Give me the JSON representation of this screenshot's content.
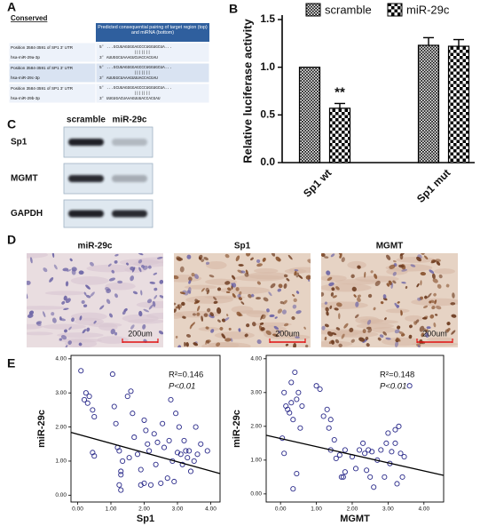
{
  "panel_labels": [
    "A",
    "B",
    "C",
    "D",
    "E"
  ],
  "conservation_table": {
    "title": "Conserved",
    "header": "Predicted consequential pairing of target region (top) and miRNA (bottom)",
    "rows": [
      {
        "site": "Position 3584-3591 of SP1 3' UTR",
        "mirna": "hsa-miR-29a-3p",
        "target_seq": "5'   ...GCUUAGGGGAGCCCUGGUGCUA...",
        "pairing": "|||||||",
        "mirna_seq": "3'      AUUGGCUAAAGUCUACCACGAU"
      },
      {
        "site": "Position 3584-3591 of SP1 3' UTR",
        "mirna": "hsa-miR-29c-3p",
        "target_seq": "5'   ...GCUUAGGGGAGCCCUGGUGCUA...",
        "pairing": "|||||||",
        "mirna_seq": "3'      AUUGGCUAAAGUUUACCACGAU"
      },
      {
        "site": "Position 3584-3591 of SP1 3' UTR",
        "mirna": "hsa-miR-29b-3p",
        "target_seq": "5'   ...GCUUAGGGGAGCCCUGGUGCUA...",
        "pairing": "|||||||",
        "mirna_seq": "3'     UUGUGACUAAAGUUUACCACGAU"
      }
    ]
  },
  "western_blot": {
    "lanes": [
      "scramble",
      "miR-29c"
    ],
    "proteins": [
      "Sp1",
      "MGMT",
      "GAPDH"
    ]
  },
  "ihc": {
    "panels": [
      {
        "title": "miR-29c",
        "scale_bar": "200um"
      },
      {
        "title": "Sp1",
        "scale_bar": "200um"
      },
      {
        "title": "MGMT",
        "scale_bar": "200um"
      }
    ]
  },
  "chart_data": [
    {
      "type": "bar",
      "y_label": "Relative luciferase activity",
      "categories": [
        "Sp1 wt",
        "Sp1 mut"
      ],
      "series": [
        {
          "name": "scramble",
          "color": "#000000",
          "values": [
            1.0,
            1.23
          ],
          "errors": [
            null,
            0.08
          ]
        },
        {
          "name": "miR-29c",
          "color": "#000000",
          "values": [
            0.57,
            1.22
          ],
          "errors": [
            0.05,
            0.07
          ]
        }
      ],
      "ylim": [
        0,
        1.5
      ],
      "yticks": [
        {
          "value": 0,
          "label": "0.0"
        },
        0.5,
        {
          "value": 1,
          "label": "1.0"
        },
        1.5
      ],
      "annotations": [
        "**"
      ]
    },
    {
      "type": "scatter",
      "x_label": "Sp1",
      "y_label": "miR-29c",
      "color": "#2a2a8a",
      "x": [
        0.1,
        0.25,
        0.3,
        0.35,
        0.45,
        0.5,
        0.45,
        0.5,
        0.2,
        1.05,
        1.1,
        1.15,
        1.2,
        1.25,
        1.25,
        1.3,
        1.3,
        1.35,
        1.3,
        1.5,
        1.6,
        1.65,
        1.7,
        1.8,
        1.9,
        1.9,
        2.0,
        2.05,
        2.1,
        2.15,
        2.2,
        2.3,
        2.35,
        2.4,
        2.5,
        2.55,
        2.6,
        2.7,
        2.75,
        2.8,
        2.85,
        2.9,
        2.95,
        3.0,
        3.05,
        3.1,
        3.15,
        3.2,
        3.25,
        3.3,
        3.35,
        3.4,
        3.5,
        3.55,
        3.6,
        3.7,
        3.9,
        2.0,
        1.55
      ],
      "values": [
        3.65,
        3.0,
        2.7,
        2.9,
        2.5,
        2.3,
        1.25,
        1.15,
        2.8,
        3.55,
        2.6,
        2.1,
        1.4,
        1.3,
        0.3,
        0.6,
        0.7,
        1.0,
        0.15,
        2.9,
        3.05,
        2.4,
        1.7,
        1.2,
        0.75,
        0.3,
        2.2,
        1.9,
        1.5,
        1.3,
        0.3,
        1.8,
        0.9,
        1.55,
        0.35,
        2.1,
        1.4,
        0.5,
        1.6,
        2.8,
        1.0,
        0.4,
        2.4,
        1.25,
        2.0,
        1.2,
        0.9,
        1.6,
        1.3,
        1.1,
        1.3,
        0.7,
        1.0,
        2.0,
        1.2,
        1.5,
        1.3,
        0.35,
        1.1
      ],
      "trendline": {
        "intercept": 1.79,
        "slope": -0.27
      },
      "xlim": [
        -0.2,
        4.28
      ],
      "ylim": [
        -0.2,
        4.1
      ],
      "xticks": [
        {
          "value": 0,
          "label": "0.00"
        },
        {
          "value": 1,
          "label": "1.00"
        },
        {
          "value": 2,
          "label": "2.00"
        },
        {
          "value": 3,
          "label": "3.00"
        },
        {
          "value": 4,
          "label": "4.00"
        }
      ],
      "yticks": [
        {
          "value": 0,
          "label": "0.00"
        },
        {
          "value": 1,
          "label": "1.00"
        },
        {
          "value": 2,
          "label": "2.00"
        },
        {
          "value": 3,
          "label": "3.00"
        },
        {
          "value": 4,
          "label": "4.00"
        }
      ],
      "annotations": [
        "R²=0.146",
        "P<0.01"
      ]
    },
    {
      "type": "scatter",
      "x_label": "MGMT",
      "y_label": "miR-29c",
      "color": "#2a2a8a",
      "x": [
        0.05,
        0.1,
        0.1,
        0.15,
        0.2,
        0.25,
        0.3,
        0.3,
        0.35,
        0.35,
        0.4,
        0.45,
        0.45,
        0.5,
        0.55,
        0.6,
        1.0,
        1.1,
        1.2,
        1.3,
        1.35,
        1.4,
        1.4,
        1.5,
        1.55,
        1.65,
        1.7,
        1.75,
        1.8,
        1.8,
        2.0,
        2.1,
        2.2,
        2.3,
        2.35,
        2.4,
        2.45,
        2.5,
        2.55,
        2.6,
        2.7,
        2.8,
        2.9,
        2.95,
        3.0,
        3.05,
        3.1,
        3.2,
        3.25,
        3.3,
        3.35,
        3.4,
        3.45,
        3.6,
        3.2
      ],
      "values": [
        1.65,
        1.2,
        3.0,
        2.6,
        2.5,
        2.4,
        2.7,
        3.3,
        2.2,
        0.15,
        3.6,
        2.8,
        0.6,
        3.0,
        1.95,
        2.6,
        3.2,
        3.1,
        2.3,
        2.5,
        1.95,
        1.3,
        2.2,
        1.6,
        1.05,
        1.15,
        0.5,
        0.5,
        1.3,
        0.65,
        1.1,
        0.75,
        1.3,
        1.5,
        1.2,
        0.7,
        1.3,
        0.5,
        1.25,
        0.2,
        1.0,
        1.3,
        0.5,
        1.5,
        1.8,
        0.9,
        1.25,
        1.5,
        0.3,
        2.0,
        1.2,
        0.5,
        1.1,
        3.2,
        1.9
      ],
      "trendline": {
        "intercept": 1.64,
        "slope": -0.24
      },
      "xlim": [
        -0.4,
        4.55
      ],
      "ylim": [
        -0.24,
        4.1
      ],
      "xticks": [
        {
          "value": 0,
          "label": "0.00"
        },
        {
          "value": 1,
          "label": "1.00"
        },
        {
          "value": 2,
          "label": "2.00"
        },
        {
          "value": 3,
          "label": "3.00"
        },
        {
          "value": 4,
          "label": "4.00"
        }
      ],
      "yticks": [
        {
          "value": 0,
          "label": "0.00"
        },
        {
          "value": 1,
          "label": "1.00"
        },
        {
          "value": 2,
          "label": "2.00"
        },
        {
          "value": 3,
          "label": "3.00"
        },
        {
          "value": 4,
          "label": "4.00"
        }
      ],
      "annotations": [
        "R²=0.148",
        "P<0.01"
      ]
    }
  ]
}
